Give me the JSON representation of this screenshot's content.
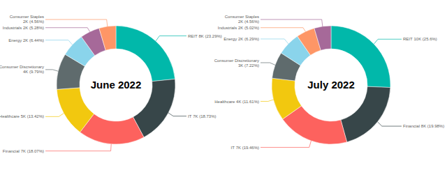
{
  "chart_data": [
    {
      "type": "donut",
      "title": "June 2022",
      "categories": [
        "REIT",
        "IT",
        "Financial",
        "Healthcare",
        "Consumer Discretionary",
        "Energy",
        "Industrials",
        "Consumer Staples"
      ],
      "values": [
        23.29,
        18.73,
        18.07,
        13.42,
        9.79,
        6.44,
        5.28,
        4.56
      ],
      "value_labels": [
        "8K (23.29%)",
        "7K (18.73%)",
        "7K (18.07%)",
        "5K (13.42%)",
        "4K (9.79%)",
        "2K (6.44%)",
        "2K (5.28%)",
        "2K (4.56%)"
      ],
      "colors": [
        "#01b8aa",
        "#374649",
        "#fd625e",
        "#f2c80f",
        "#5f6b6d",
        "#8ad4eb",
        "#a66999",
        "#fe9666"
      ],
      "data_labels": true
    },
    {
      "type": "donut",
      "title": "July 2022",
      "categories": [
        "REIT",
        "Financial",
        "IT",
        "Healthcare",
        "Consumer Discretionary",
        "Energy",
        "Industrials",
        "Consumer Staples"
      ],
      "values": [
        25.6,
        19.98,
        19.46,
        11.61,
        7.22,
        6.29,
        5.02,
        4.56
      ],
      "value_labels": [
        "10K (25.6%)",
        "8K (19.98%)",
        "7K (19.46%)",
        "4K (11.61%)",
        "3K (7.22%)",
        "2K (6.29%)",
        "2K (5.02%)",
        "2K (4.56%)"
      ],
      "colors": [
        "#01b8aa",
        "#374649",
        "#fd625e",
        "#f2c80f",
        "#5f6b6d",
        "#8ad4eb",
        "#fe9666",
        "#a66999"
      ],
      "data_labels": true
    }
  ]
}
